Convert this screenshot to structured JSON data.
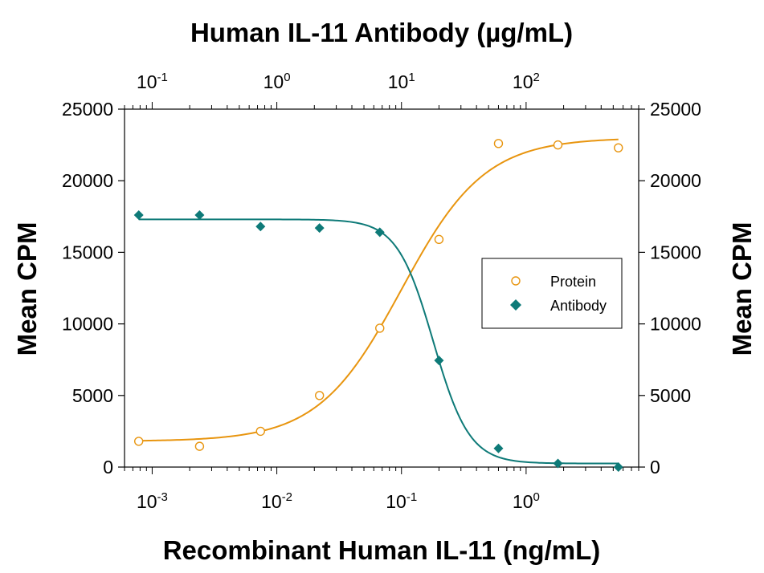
{
  "chart_data": {
    "type": "scatter",
    "title": "Human IL-11 Antibody (µg/mL)",
    "xlabel": "Recombinant Human IL-11 (ng/mL)",
    "ylabel_left": "Mean CPM",
    "ylabel_right": "Mean CPM",
    "x_scale": "log",
    "xlim": [
      0.0006,
      8
    ],
    "ylim": [
      0,
      25000
    ],
    "y_ticks": [
      "0",
      "5000",
      "10000",
      "15000",
      "20000",
      "25000"
    ],
    "y_tick_values": [
      0,
      5000,
      10000,
      15000,
      20000,
      25000
    ],
    "x_ticks": [
      {
        "base": "10",
        "exp": "-3",
        "value": 0.001
      },
      {
        "base": "10",
        "exp": "-2",
        "value": 0.01
      },
      {
        "base": "10",
        "exp": "-1",
        "value": 0.1
      },
      {
        "base": "10",
        "exp": "0",
        "value": 1
      }
    ],
    "top_x_ticks": [
      {
        "base": "10",
        "exp": "-1",
        "value": 0.1
      },
      {
        "base": "10",
        "exp": "0",
        "value": 1
      },
      {
        "base": "10",
        "exp": "1",
        "value": 10
      },
      {
        "base": "10",
        "exp": "2",
        "value": 100
      }
    ],
    "top_xlim": [
      0.06,
      800
    ],
    "legend_position": "right",
    "series": [
      {
        "name": "Protein",
        "marker": "open-circle",
        "color": "#E8950F",
        "x": [
          0.00078,
          0.0024,
          0.0074,
          0.022,
          0.067,
          0.2,
          0.6,
          1.8,
          5.5
        ],
        "y": [
          1800,
          1450,
          2500,
          5000,
          9700,
          15900,
          22600,
          22500,
          22300
        ],
        "fit": {
          "bottom": 1800,
          "top": 23000,
          "ec50": 0.1,
          "hill": 1.3
        }
      },
      {
        "name": "Antibody",
        "marker": "filled-diamond",
        "color": "#0E7A78",
        "x": [
          0.00078,
          0.0024,
          0.0074,
          0.022,
          0.067,
          0.2,
          0.6,
          1.8,
          5.5
        ],
        "y": [
          17600,
          17600,
          16800,
          16700,
          16400,
          7450,
          1300,
          250,
          0
        ],
        "fit": {
          "bottom": 250,
          "top": 17300,
          "ec50": 0.18,
          "hill": 3.0
        }
      }
    ]
  }
}
